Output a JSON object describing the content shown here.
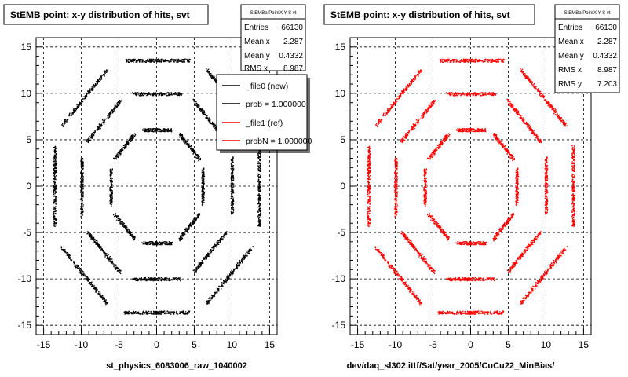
{
  "chart_data": [
    {
      "type": "scatter",
      "title": "StEMB point: x-y distribution of hits, svt",
      "footer": "st_physics_6083006_raw_1040002",
      "xlim": [
        -16,
        16
      ],
      "ylim": [
        -16,
        16
      ],
      "x_ticks": [
        -15,
        -10,
        -5,
        0,
        5,
        10,
        15
      ],
      "y_ticks": [
        -15,
        -10,
        -5,
        0,
        5,
        10,
        15
      ],
      "x_tick_labels": [
        "-15",
        "-10",
        "-5",
        "0",
        "5",
        "10",
        "15"
      ],
      "y_tick_labels": [
        "-15",
        "-10",
        "-5",
        "0",
        "5",
        "10",
        "15"
      ],
      "grid": true,
      "marker_color": "#000000",
      "stats": {
        "name": "StEMBa PointX Y S vt",
        "rows": [
          {
            "label": "Entries",
            "value": "66130"
          },
          {
            "label": "Mean x",
            "value": "2.287"
          },
          {
            "label": "Mean y",
            "value": "0.4332"
          },
          {
            "label": "RMS x",
            "value": "8.987"
          }
        ]
      },
      "legend": {
        "placement": "right",
        "entries": [
          {
            "label": "_file0 (new)",
            "color": "#000000"
          },
          {
            "label": "prob = 1.000000",
            "color": "#000000"
          },
          {
            "label": "_file1 (ref)",
            "color": "#ff0000"
          },
          {
            "label": "probN = 1.000000",
            "color": "#ff0000"
          }
        ]
      },
      "series": [
        {
          "shape": "octagon",
          "radius": 6.6,
          "points_per_side": 140
        },
        {
          "shape": "octagon",
          "radius": 10.8,
          "points_per_side": 180
        },
        {
          "shape": "octagon",
          "radius": 14.7,
          "points_per_side": 220
        }
      ]
    },
    {
      "type": "scatter",
      "title": "StEMB point: x-y distribution of hits, svt",
      "footer": "dev/daq_sl302.ittf/Sat/year_2005/CuCu22_MinBias/",
      "xlim": [
        -16,
        16
      ],
      "ylim": [
        -16,
        16
      ],
      "x_ticks": [
        -15,
        -10,
        -5,
        0,
        5,
        10,
        15
      ],
      "y_ticks": [
        -15,
        -10,
        -5,
        0,
        5,
        10,
        15
      ],
      "x_tick_labels": [
        "-15",
        "-10",
        "-5",
        "0",
        "5",
        "10",
        "15"
      ],
      "y_tick_labels": [
        "-15",
        "-10",
        "-5",
        "0",
        "5",
        "10",
        "15"
      ],
      "grid": true,
      "marker_color": "#ff0000",
      "stats": {
        "name": "StEMBa PointX Y S vt",
        "rows": [
          {
            "label": "Entries",
            "value": "66130"
          },
          {
            "label": "Mean x",
            "value": "2.287"
          },
          {
            "label": "Mean y",
            "value": "0.4332"
          },
          {
            "label": "RMS x",
            "value": "8.987"
          },
          {
            "label": "RMS y",
            "value": "7.203"
          }
        ]
      },
      "series": [
        {
          "shape": "octagon",
          "radius": 6.6,
          "points_per_side": 140
        },
        {
          "shape": "octagon",
          "radius": 10.8,
          "points_per_side": 180
        },
        {
          "shape": "octagon",
          "radius": 14.7,
          "points_per_side": 220
        }
      ]
    }
  ]
}
